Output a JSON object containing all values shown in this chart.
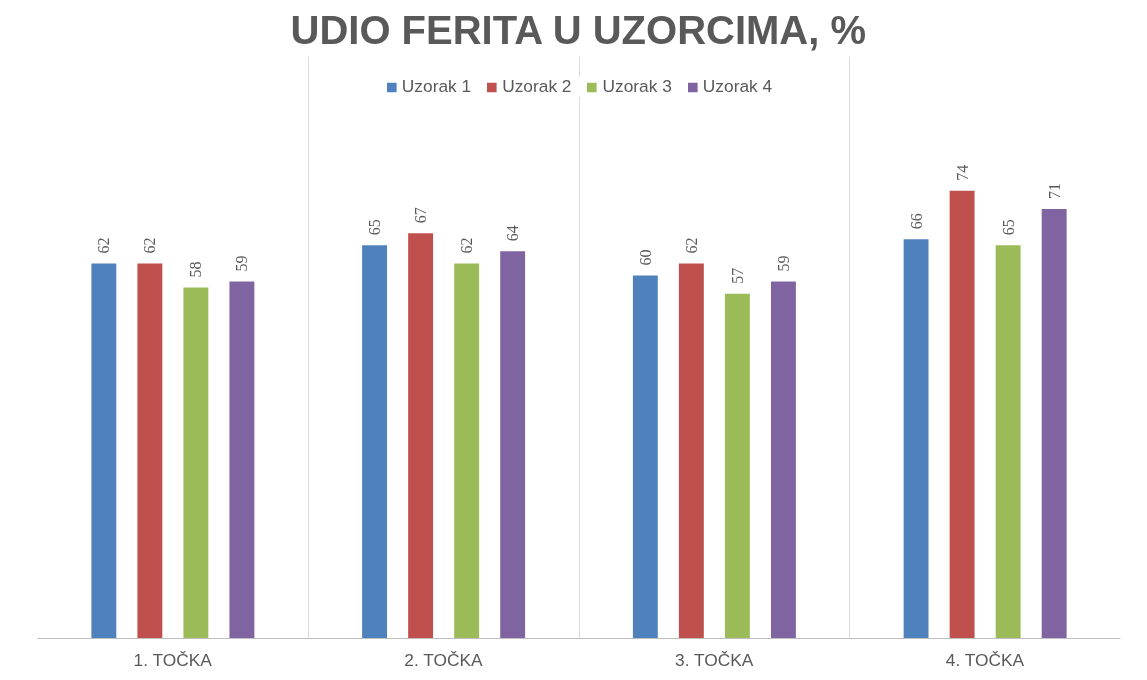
{
  "chart_data": {
    "type": "bar",
    "title": "UDIO FERITA U UZORCIMA, %",
    "categories": [
      "1. TOČKA",
      "2. TOČKA",
      "3. TOČKA",
      "4. TOČKA"
    ],
    "series": [
      {
        "name": "Uzorak 1",
        "color": "#4f81bd",
        "values": [
          62,
          65,
          60,
          66
        ]
      },
      {
        "name": "Uzorak 2",
        "color": "#c0504d",
        "values": [
          62,
          67,
          62,
          74
        ]
      },
      {
        "name": "Uzorak 3",
        "color": "#9bbb59",
        "values": [
          58,
          62,
          57,
          65
        ]
      },
      {
        "name": "Uzorak 4",
        "color": "#8064a2",
        "values": [
          59,
          64,
          59,
          71
        ]
      }
    ],
    "tick_labels": "x",
    "grid": "x",
    "legend": "top",
    "data_labels": true
  }
}
